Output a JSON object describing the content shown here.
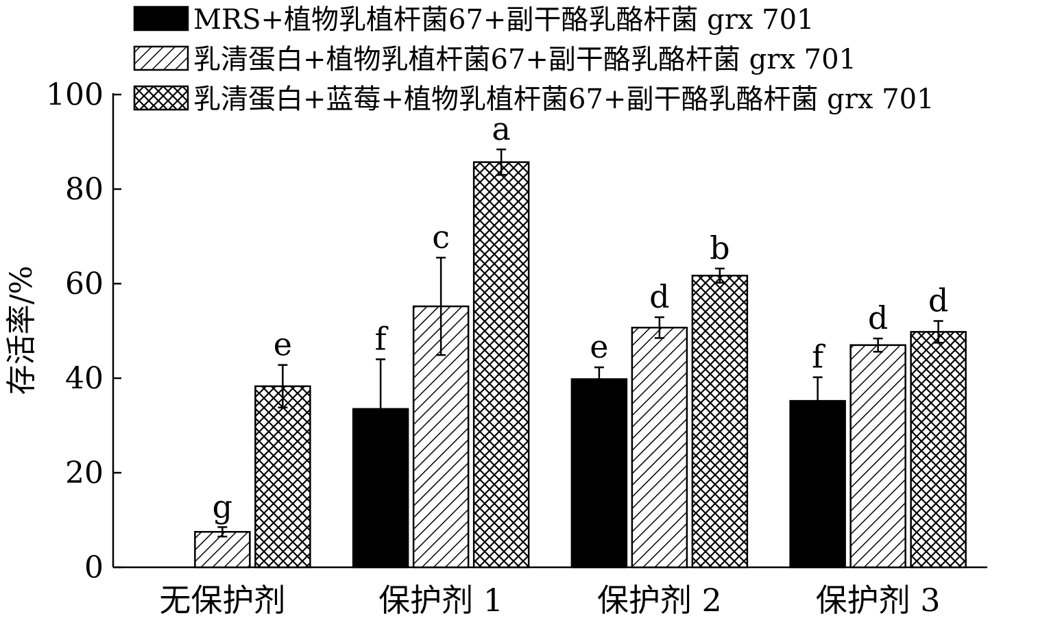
{
  "chart_data": {
    "type": "bar",
    "title": "",
    "xlabel": "",
    "ylabel": "存活率/%",
    "ylim": [
      0,
      100
    ],
    "yticks": [
      0,
      20,
      40,
      60,
      80,
      100
    ],
    "categories": [
      "无保护剂",
      "保护剂 1",
      "保护剂 2",
      "保护剂 3"
    ],
    "legend_position": "top",
    "grid": false,
    "series": [
      {
        "name": "MRS+植物乳植杆菌67+副干酪乳酪杆菌 grx 701",
        "pattern": "solid-black",
        "values": [
          0,
          33.5,
          39.8,
          35.2
        ],
        "errors": [
          0,
          10.5,
          2.5,
          5.0
        ],
        "letters": [
          "",
          "f",
          "e",
          "f"
        ]
      },
      {
        "name": "乳清蛋白+植物乳植杆菌67+副干酪乳酪杆菌 grx 701",
        "pattern": "diagonal-hatch",
        "values": [
          7.5,
          55.2,
          50.7,
          47.0
        ],
        "errors": [
          1.0,
          10.3,
          2.2,
          1.4
        ],
        "letters": [
          "g",
          "c",
          "d",
          "d"
        ]
      },
      {
        "name": "乳清蛋白+蓝莓+植物乳植杆菌67+副干酪乳酪杆菌 grx 701",
        "pattern": "cross-hatch",
        "values": [
          38.3,
          85.7,
          61.7,
          49.8
        ],
        "errors": [
          4.5,
          2.7,
          1.5,
          2.3
        ],
        "letters": [
          "e",
          "a",
          "b",
          "d"
        ]
      }
    ]
  },
  "colors": {
    "bar": "#000000",
    "background": "#ffffff"
  }
}
